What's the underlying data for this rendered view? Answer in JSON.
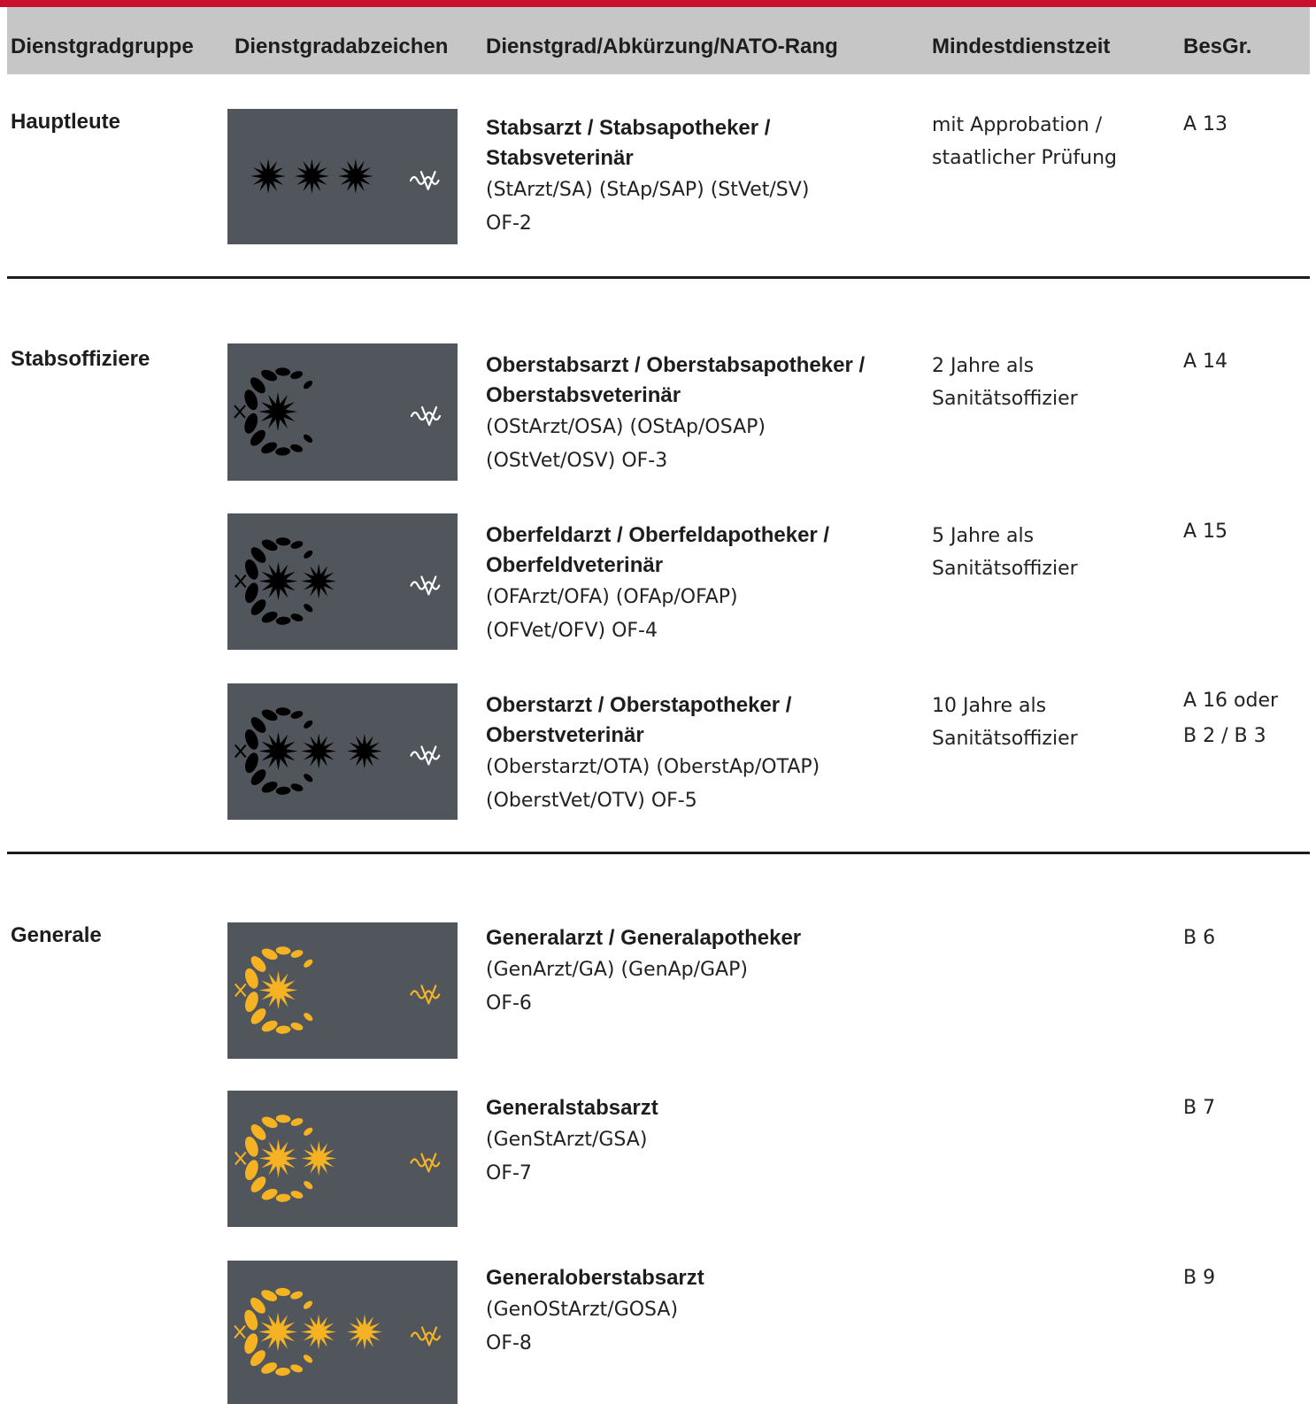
{
  "header": {
    "group": "Dienstgradgruppe",
    "badge": "Dienstgradabzeichen",
    "rank": "Dienstgrad/Abkürzung/NATO-Rang",
    "min_time": "Mindestdienstzeit",
    "pay": "BesGr."
  },
  "groups": {
    "hauptleute": "Hauptleute",
    "stabsoffiziere": "Stabsoffiziere",
    "generale": "Generale"
  },
  "rows": [
    {
      "name_line1": "Stabsarzt / Stabsapotheker /",
      "name_line2": "Stabsveterinär",
      "abbr_line1": "(StArzt/SA) (StAp/SAP) (StVet/SV)",
      "abbr_line2": "OF-2",
      "min_line1": "mit Approbation /",
      "min_line2": "staatlicher Prüfung",
      "pay_line1": "A 13",
      "pay_line2": "",
      "badge": {
        "wreath": false,
        "stars": 3,
        "color": "#000000",
        "icon": "aesculapian-staff-icon"
      }
    },
    {
      "name_line1": "Oberstabsarzt / Oberstabsapotheker /",
      "name_line2": "Oberstabsveterinär",
      "abbr_line1": "(OStArzt/OSA) (OStAp/OSAP)",
      "abbr_line2": "(OStVet/OSV) OF-3",
      "min_line1": "2 Jahre als",
      "min_line2": "Sanitätsoffizier",
      "pay_line1": "A 14",
      "pay_line2": "",
      "badge": {
        "wreath": true,
        "stars": 0,
        "color": "#000000",
        "icon": "aesculapian-staff-icon"
      }
    },
    {
      "name_line1": "Oberfeldarzt / Oberfeldapotheker /",
      "name_line2": "Oberfeldveterinär",
      "abbr_line1": "(OFArzt/OFA) (OFAp/OFAP)",
      "abbr_line2": "(OFVet/OFV) OF-4",
      "min_line1": "5 Jahre als",
      "min_line2": "Sanitätsoffizier",
      "pay_line1": "A 15",
      "pay_line2": "",
      "badge": {
        "wreath": true,
        "stars": 1,
        "color": "#000000",
        "icon": "aesculapian-staff-icon"
      }
    },
    {
      "name_line1": "Oberstarzt / Oberstapotheker /",
      "name_line2": "Oberstveterinär",
      "abbr_line1": "(Oberstarzt/OTA) (OberstAp/OTAP)",
      "abbr_line2": "(OberstVet/OTV) OF-5",
      "min_line1": "10 Jahre als",
      "min_line2": "Sanitätsoffizier",
      "pay_line1": "A 16 oder",
      "pay_line2": "B 2 / B 3",
      "badge": {
        "wreath": true,
        "stars": 2,
        "color": "#000000",
        "icon": "aesculapian-staff-icon"
      }
    },
    {
      "name_line1": "Generalarzt / Generalapotheker",
      "name_line2": "",
      "abbr_line1": "(GenArzt/GA) (GenAp/GAP)",
      "abbr_line2": "OF-6",
      "min_line1": "",
      "min_line2": "",
      "pay_line1": "B 6",
      "pay_line2": "",
      "badge": {
        "wreath": true,
        "stars": 0,
        "color": "#f5b223",
        "icon": "aesculapian-staff-icon"
      }
    },
    {
      "name_line1": "Generalstabsarzt",
      "name_line2": "",
      "abbr_line1": "(GenStArzt/GSA)",
      "abbr_line2": "OF-7",
      "min_line1": "",
      "min_line2": "",
      "pay_line1": "B 7",
      "pay_line2": "",
      "badge": {
        "wreath": true,
        "stars": 1,
        "color": "#f5b223",
        "icon": "aesculapian-staff-icon"
      }
    },
    {
      "name_line1": "Generaloberstabsarzt",
      "name_line2": "",
      "abbr_line1": "(GenOStArzt/GOSA)",
      "abbr_line2": "OF-8",
      "min_line1": "",
      "min_line2": "",
      "pay_line1": "B 9",
      "pay_line2": "",
      "badge": {
        "wreath": true,
        "stars": 2,
        "color": "#f5b223",
        "icon": "aesculapian-staff-icon"
      }
    }
  ]
}
